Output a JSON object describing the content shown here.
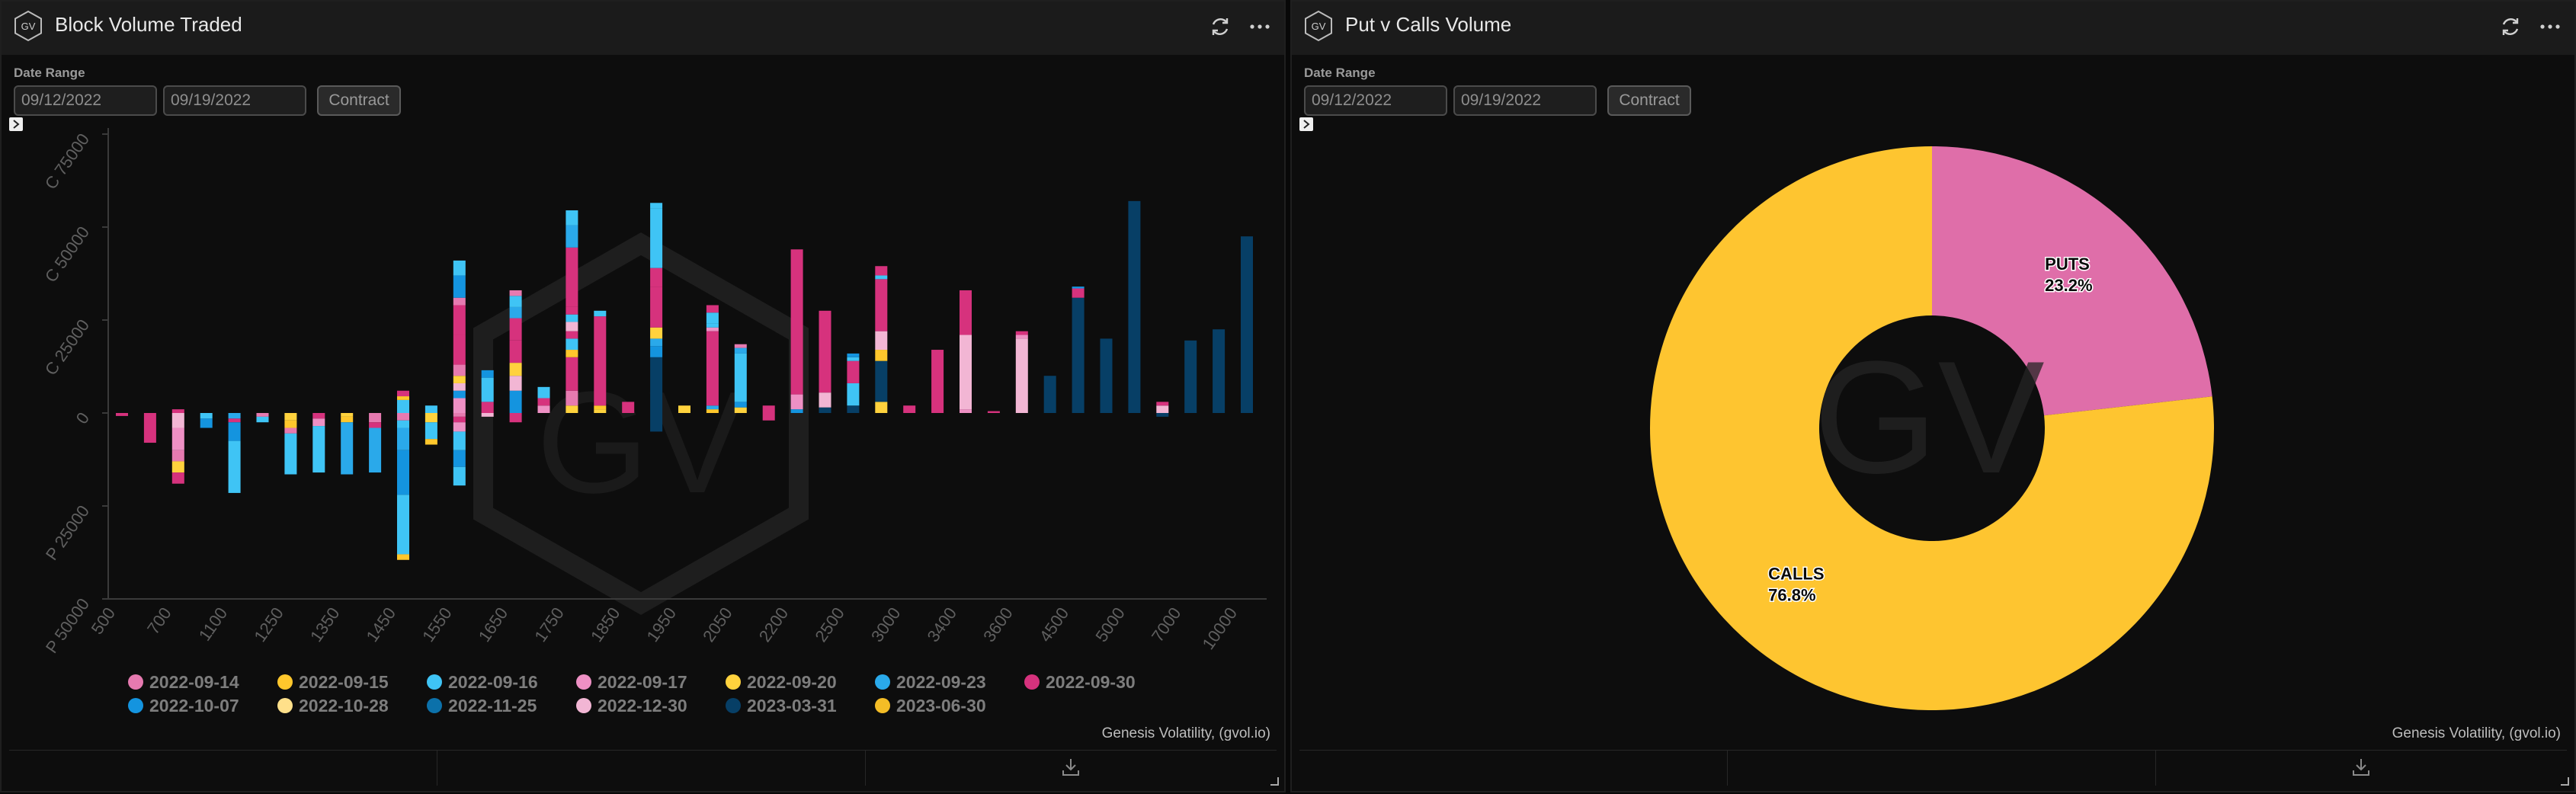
{
  "left_panel": {
    "title": "Block Volume Traded",
    "date_range_label": "Date Range",
    "start_date": "09/12/2022",
    "end_date": "09/19/2022",
    "contract_label": "Contract",
    "credit": "Genesis Volatility, (gvol.io)",
    "icons": [
      "gv-logo-icon",
      "refresh-icon",
      "more-icon",
      "expand-icon",
      "download-icon",
      "resize-icon"
    ]
  },
  "right_panel": {
    "title": "Put v Calls Volume",
    "date_range_label": "Date Range",
    "start_date": "09/12/2022",
    "end_date": "09/19/2022",
    "contract_label": "Contract",
    "credit": "Genesis Volatility, (gvol.io)",
    "watermark": "GV"
  },
  "chart_data": [
    {
      "type": "bar",
      "stacked": true,
      "watermark": "GV",
      "y_ticks": [
        "C 75000",
        "C 50000",
        "C 25000",
        "0",
        "P 25000",
        "P 50000"
      ],
      "y_tick_values": [
        75000,
        50000,
        25000,
        0,
        -25000,
        -50000
      ],
      "ylim": [
        -50000,
        75000
      ],
      "x_tick_labels": [
        "500",
        "700",
        "1100",
        "1250",
        "1350",
        "1450",
        "1550",
        "1650",
        "1750",
        "1850",
        "1950",
        "2050",
        "2200",
        "2500",
        "3000",
        "3400",
        "3600",
        "4500",
        "5000",
        "7000",
        "10000"
      ],
      "legend_position": "bottom",
      "series_colors": {
        "2022-09-14": "#e67ab0",
        "2022-09-15": "#ffc72c",
        "2022-09-16": "#3fc4f5",
        "2022-09-17": "#ee90c4",
        "2022-09-20": "#ffd23d",
        "2022-09-23": "#2aa9ea",
        "2022-09-30": "#d6327d",
        "2022-10-07": "#1494df",
        "2022-10-28": "#ffe08a",
        "2022-11-25": "#0c71aa",
        "2022-12-30": "#f2b6d4",
        "2023-03-31": "#073f66",
        "2023-06-30": "#f4bd26"
      },
      "legend": [
        "2022-09-14",
        "2022-09-15",
        "2022-09-16",
        "2022-09-17",
        "2022-09-20",
        "2022-09-23",
        "2022-09-30",
        "2022-10-07",
        "2022-10-28",
        "2022-11-25",
        "2022-12-30",
        "2023-03-31",
        "2023-06-30"
      ],
      "bars": [
        {
          "calls": [],
          "puts": [
            [
              "2022-09-30",
              800
            ]
          ]
        },
        {
          "calls": [],
          "puts": [
            [
              "2022-09-30",
              8000
            ]
          ]
        },
        {
          "calls": [
            [
              "2022-09-30",
              1000
            ]
          ],
          "puts": [
            [
              "2022-12-30",
              4000
            ],
            [
              "2022-09-17",
              6000
            ],
            [
              "2022-09-14",
              3000
            ],
            [
              "2022-09-20",
              3000
            ],
            [
              "2022-09-30",
              3000
            ]
          ]
        },
        {
          "calls": [],
          "puts": [
            [
              "2022-09-16",
              1500
            ],
            [
              "2022-10-07",
              2500
            ]
          ]
        },
        {
          "calls": [],
          "puts": [
            [
              "2022-09-23",
              1500
            ],
            [
              "2022-09-30",
              1000
            ],
            [
              "2022-10-07",
              5000
            ],
            [
              "2022-09-16",
              14000
            ]
          ]
        },
        {
          "calls": [],
          "puts": [
            [
              "2022-09-14",
              1000
            ],
            [
              "2022-09-16",
              1500
            ]
          ]
        },
        {
          "calls": [],
          "puts": [
            [
              "2022-09-20",
              2000
            ],
            [
              "2022-09-15",
              2000
            ],
            [
              "2022-09-14",
              1500
            ],
            [
              "2022-09-16",
              11000
            ]
          ]
        },
        {
          "calls": [],
          "puts": [
            [
              "2022-09-30",
              1500
            ],
            [
              "2022-09-17",
              2000
            ],
            [
              "2022-09-16",
              12500
            ]
          ]
        },
        {
          "calls": [],
          "puts": [
            [
              "2022-09-20",
              1000
            ],
            [
              "2022-09-15",
              1500
            ],
            [
              "2022-09-23",
              14000
            ]
          ]
        },
        {
          "calls": [],
          "puts": [
            [
              "2022-09-14",
              2500
            ],
            [
              "2022-09-30",
              1500
            ],
            [
              "2022-09-23",
              12000
            ]
          ]
        },
        {
          "calls": [
            [
              "2022-09-16",
              3500
            ],
            [
              "2022-09-15",
              1000
            ],
            [
              "2022-09-30",
              1500
            ]
          ],
          "puts": [
            [
              "2022-09-14",
              2000
            ],
            [
              "2022-09-16",
              2000
            ],
            [
              "2022-09-23",
              6000
            ],
            [
              "2022-10-07",
              12000
            ],
            [
              "2022-09-16",
              16000
            ],
            [
              "2022-09-15",
              1500
            ]
          ]
        },
        {
          "calls": [
            [
              "2022-09-16",
              2000
            ]
          ],
          "puts": [
            [
              "2022-09-20",
              2500
            ],
            [
              "2022-09-16",
              4500
            ],
            [
              "2022-09-15",
              1500
            ]
          ]
        },
        {
          "calls": [
            [
              "2022-09-17",
              4000
            ],
            [
              "2022-10-07",
              2000
            ],
            [
              "2022-12-30",
              2000
            ],
            [
              "2022-09-20",
              2000
            ],
            [
              "2022-09-14",
              3000
            ],
            [
              "2022-09-30",
              8000
            ],
            [
              "2022-09-30",
              8000
            ],
            [
              "2022-09-14",
              2000
            ],
            [
              "2022-10-07",
              6000
            ],
            [
              "2022-09-16",
              4000
            ]
          ],
          "puts": [
            [
              "2022-09-14",
              1000
            ],
            [
              "2022-09-30",
              1500
            ],
            [
              "2022-09-17",
              2500
            ],
            [
              "2022-09-16",
              5000
            ],
            [
              "2022-10-07",
              4500
            ],
            [
              "2022-09-16",
              5000
            ]
          ]
        },
        {
          "calls": [
            [
              "2022-09-30",
              3000
            ],
            [
              "2022-09-16",
              6500
            ],
            [
              "2022-10-07",
              2000
            ]
          ],
          "puts": [
            [
              "2022-12-30",
              1000
            ]
          ]
        },
        {
          "calls": [
            [
              "2022-10-07",
              6000
            ],
            [
              "2022-12-30",
              4000
            ],
            [
              "2022-09-20",
              3500
            ],
            [
              "2022-09-30",
              6000
            ],
            [
              "2022-09-30",
              6000
            ],
            [
              "2022-09-23",
              3000
            ],
            [
              "2022-09-16",
              3000
            ],
            [
              "2022-09-14",
              1500
            ]
          ],
          "puts": [
            [
              "2022-09-30",
              2500
            ]
          ]
        },
        {
          "calls": [
            [
              "2022-09-17",
              2000
            ],
            [
              "2022-09-30",
              2000
            ],
            [
              "2022-09-16",
              3000
            ]
          ],
          "puts": []
        },
        {
          "calls": [
            [
              "2022-09-20",
              2000
            ],
            [
              "2022-09-14",
              4000
            ],
            [
              "2022-09-30",
              9000
            ],
            [
              "2022-09-15",
              2000
            ],
            [
              "2022-09-16",
              3000
            ],
            [
              "2022-09-30",
              2000
            ],
            [
              "2022-12-30",
              2500
            ],
            [
              "2022-09-16",
              2000
            ],
            [
              "2022-09-30",
              2000
            ],
            [
              "2022-09-30",
              16000
            ],
            [
              "2022-09-23",
              6000
            ],
            [
              "2022-09-16",
              4000
            ]
          ],
          "puts": []
        },
        {
          "calls": [
            [
              "2022-09-20",
              1000
            ],
            [
              "2022-09-15",
              1000
            ],
            [
              "2022-09-30",
              24000
            ],
            [
              "2022-09-16",
              1500
            ]
          ],
          "puts": []
        },
        {
          "calls": [
            [
              "2022-09-30",
              3000
            ]
          ],
          "puts": []
        },
        {
          "calls": [
            [
              "2023-03-31",
              15000
            ],
            [
              "2022-10-07",
              3000
            ],
            [
              "2022-09-23",
              2000
            ],
            [
              "2022-09-20",
              3000
            ],
            [
              "2022-09-30",
              11000
            ],
            [
              "2022-09-30",
              5000
            ],
            [
              "2022-09-16",
              16000
            ],
            [
              "2022-09-16",
              1500
            ]
          ],
          "puts": [
            [
              "2023-03-31",
              5000
            ]
          ]
        },
        {
          "calls": [
            [
              "2022-09-20",
              2000
            ]
          ],
          "puts": []
        },
        {
          "calls": [
            [
              "2022-09-15",
              1000
            ],
            [
              "2022-09-23",
              1000
            ],
            [
              "2022-09-30",
              20000
            ],
            [
              "2022-09-17",
              1000
            ],
            [
              "2022-09-16",
              1000
            ],
            [
              "2022-09-16",
              3000
            ],
            [
              "2022-09-30",
              2000
            ]
          ],
          "puts": []
        },
        {
          "calls": [
            [
              "2022-09-20",
              1500
            ],
            [
              "2022-10-07",
              1500
            ],
            [
              "2022-09-16",
              13000
            ],
            [
              "2022-09-23",
              1500
            ],
            [
              "2022-09-14",
              1000
            ]
          ],
          "puts": []
        },
        {
          "calls": [
            [
              "2022-09-30",
              2000
            ]
          ],
          "puts": [
            [
              "2022-09-30",
              2000
            ]
          ]
        },
        {
          "calls": [
            [
              "2022-10-07",
              1000
            ],
            [
              "2022-09-17",
              4000
            ],
            [
              "2022-09-30",
              39000
            ]
          ],
          "puts": []
        },
        {
          "calls": [
            [
              "2023-03-31",
              1500
            ],
            [
              "2022-12-30",
              4000
            ],
            [
              "2022-09-30",
              22000
            ]
          ],
          "puts": []
        },
        {
          "calls": [
            [
              "2023-03-31",
              2000
            ],
            [
              "2022-09-16",
              6000
            ],
            [
              "2022-09-30",
              6000
            ],
            [
              "2022-09-16",
              1000
            ],
            [
              "2022-10-07",
              1000
            ]
          ],
          "puts": []
        },
        {
          "calls": [
            [
              "2022-09-20",
              3000
            ],
            [
              "2023-03-31",
              11000
            ],
            [
              "2022-09-15",
              3000
            ],
            [
              "2022-12-30",
              5000
            ],
            [
              "2022-09-30",
              14000
            ],
            [
              "2022-09-16",
              1000
            ],
            [
              "2022-09-30",
              2500
            ]
          ],
          "puts": []
        },
        {
          "calls": [
            [
              "2022-09-30",
              2000
            ]
          ],
          "puts": []
        },
        {
          "calls": [
            [
              "2022-09-30",
              17000
            ]
          ],
          "puts": []
        },
        {
          "calls": [
            [
              "2022-09-17",
              1000
            ],
            [
              "2022-12-30",
              20000
            ],
            [
              "2022-09-30",
              12000
            ]
          ],
          "puts": []
        },
        {
          "calls": [
            [
              "2022-09-30",
              500
            ]
          ],
          "puts": []
        },
        {
          "calls": [
            [
              "2022-12-30",
              20000
            ],
            [
              "2022-09-17",
              1000
            ],
            [
              "2022-09-30",
              1000
            ]
          ],
          "puts": []
        },
        {
          "calls": [
            [
              "2023-03-31",
              10000
            ]
          ],
          "puts": []
        },
        {
          "calls": [
            [
              "2023-03-31",
              31000
            ],
            [
              "2022-09-30",
              2500
            ],
            [
              "2022-10-07",
              500
            ]
          ],
          "puts": []
        },
        {
          "calls": [
            [
              "2023-03-31",
              20000
            ]
          ],
          "puts": []
        },
        {
          "calls": [
            [
              "2023-03-31",
              57000
            ]
          ],
          "puts": []
        },
        {
          "calls": [
            [
              "2022-12-30",
              2000
            ],
            [
              "2022-09-30",
              1000
            ]
          ],
          "puts": [
            [
              "2023-03-31",
              1000
            ]
          ]
        },
        {
          "calls": [
            [
              "2023-03-31",
              19500
            ]
          ],
          "puts": []
        },
        {
          "calls": [
            [
              "2023-03-31",
              22500
            ]
          ],
          "puts": []
        },
        {
          "calls": [
            [
              "2023-03-31",
              47500
            ]
          ],
          "puts": []
        }
      ]
    },
    {
      "type": "pie",
      "donut": true,
      "slices": [
        {
          "label": "PUTS",
          "value": 23.2,
          "percent_text": "23.2%",
          "color": "#df6ea9"
        },
        {
          "label": "CALLS",
          "value": 76.8,
          "percent_text": "76.8%",
          "color": "#fec530"
        }
      ]
    }
  ]
}
